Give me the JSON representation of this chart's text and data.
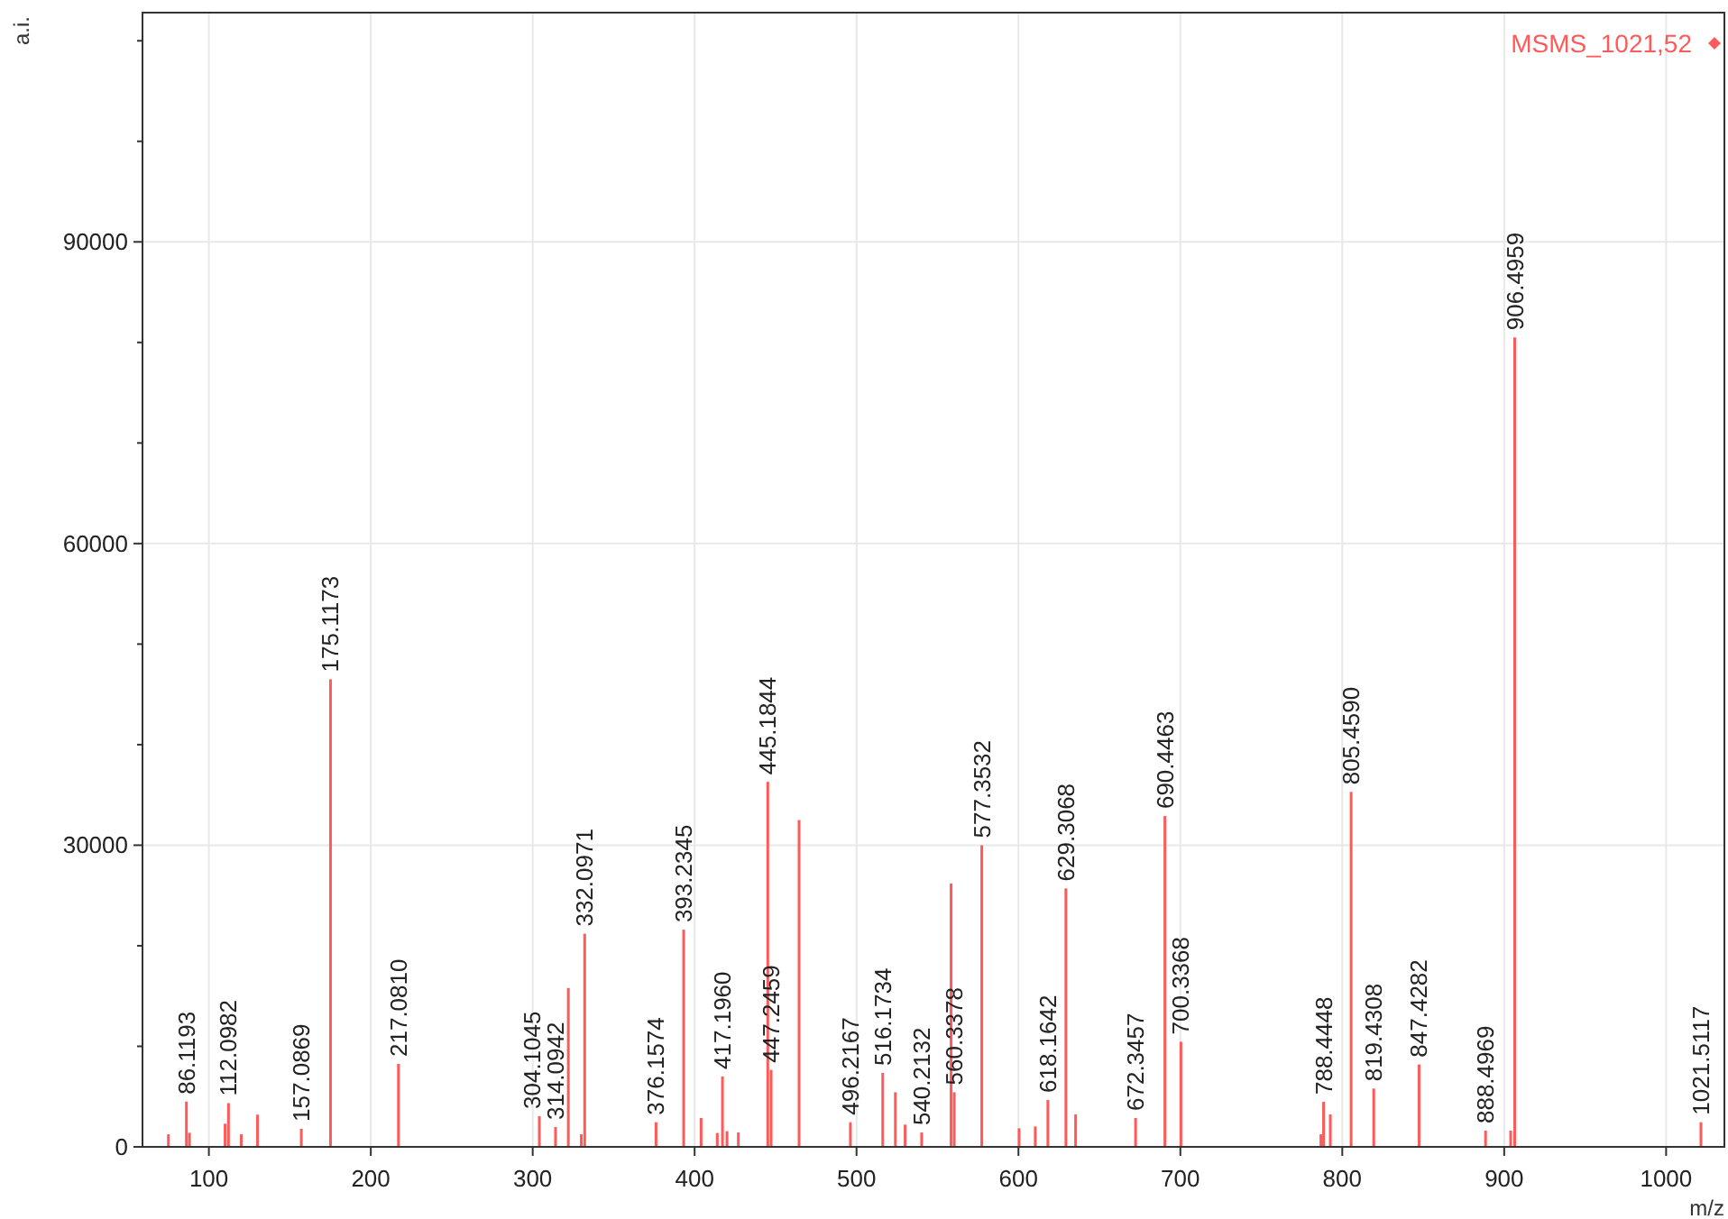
{
  "chart_data": {
    "type": "bar",
    "xlabel": "m/z",
    "ylabel": "a.i.",
    "xlim": [
      59,
      1036
    ],
    "xticks": [
      100,
      200,
      300,
      400,
      500,
      600,
      700,
      800,
      900,
      1000
    ],
    "ylim": [
      0,
      112800
    ],
    "yticks": [
      0,
      {
        "value": 10000,
        "label": null
      },
      {
        "value": 20000,
        "label": null
      },
      30000,
      {
        "value": 40000,
        "label": null
      },
      {
        "value": 50000,
        "label": null
      },
      60000,
      {
        "value": 70000,
        "label": null
      },
      {
        "value": 80000,
        "label": null
      },
      90000,
      {
        "value": 100000,
        "label": null
      },
      {
        "value": 110000,
        "label": null
      }
    ],
    "grid": true,
    "legend": "top right",
    "series": [
      {
        "name": "MSMS_1021,52",
        "color": "#ff5a5a",
        "x": [
          75,
          86.1193,
          88,
          110,
          112.0982,
          120,
          130,
          157.0869,
          175.1173,
          217.081,
          304.1045,
          314.0942,
          322,
          330,
          332.0971,
          376.1574,
          393.2345,
          404,
          414,
          417.196,
          420,
          427,
          445.1844,
          447.2459,
          464.5,
          496.2167,
          516.1734,
          524,
          530,
          540.2132,
          558.4,
          560.3378,
          577.3532,
          600.4,
          610.4,
          618.1642,
          629.3068,
          635.3,
          672.3457,
          690.4463,
          700.3368,
          786.8,
          788.4448,
          792.6,
          805.459,
          819.4308,
          847.4282,
          888.4969,
          904,
          906.4959,
          1021.5117
        ],
        "values": [
          1250,
          4500,
          1400,
          2300,
          4350,
          1250,
          3200,
          1800,
          46500,
          8250,
          3050,
          1970,
          15800,
          1250,
          21200,
          2450,
          21600,
          2870,
          1380,
          7000,
          1560,
          1430,
          36300,
          7650,
          32500,
          2450,
          7350,
          5430,
          2210,
          1430,
          26200,
          5430,
          30000,
          1850,
          2030,
          4660,
          25700,
          3230,
          2870,
          32900,
          10450,
          1250,
          4480,
          3230,
          35300,
          5800,
          8190,
          1610,
          1610,
          80500,
          2450
        ]
      }
    ],
    "annotations": [
      {
        "text": "86.1193",
        "x": 86.1193,
        "y": 4500
      },
      {
        "text": "112.0982",
        "x": 112.0982,
        "y": 4350
      },
      {
        "text": "157.0869",
        "x": 157.0869,
        "y": 1800
      },
      {
        "text": "175.1173",
        "x": 175.1173,
        "y": 46500
      },
      {
        "text": "217.0810",
        "x": 217.081,
        "y": 8250
      },
      {
        "text": "304.1045",
        "x": 304.1045,
        "y": 3050
      },
      {
        "text": "314.0942",
        "x": 314.0942,
        "y": 1970
      },
      {
        "text": "332.0971",
        "x": 332.0971,
        "y": 21200
      },
      {
        "text": "376.1574",
        "x": 376.1574,
        "y": 2450
      },
      {
        "text": "393.2345",
        "x": 393.2345,
        "y": 21600
      },
      {
        "text": "417.1960",
        "x": 417.196,
        "y": 7000
      },
      {
        "text": "445.1844",
        "x": 445.1844,
        "y": 36300
      },
      {
        "text": "447.2459",
        "x": 447.2459,
        "y": 7650
      },
      {
        "text": "496.2167",
        "x": 496.2167,
        "y": 2450
      },
      {
        "text": "516.1734",
        "x": 516.1734,
        "y": 7350
      },
      {
        "text": "540.2132",
        "x": 540.2132,
        "y": 1430
      },
      {
        "text": "560.3378",
        "x": 560.3378,
        "y": 5430
      },
      {
        "text": "577.3532",
        "x": 577.3532,
        "y": 30000
      },
      {
        "text": "618.1642",
        "x": 618.1642,
        "y": 4660
      },
      {
        "text": "629.3068",
        "x": 629.3068,
        "y": 25700
      },
      {
        "text": "672.3457",
        "x": 672.3457,
        "y": 2870
      },
      {
        "text": "690.4463",
        "x": 690.4463,
        "y": 32900
      },
      {
        "text": "700.3368",
        "x": 700.3368,
        "y": 10450
      },
      {
        "text": "788.4448",
        "x": 788.4448,
        "y": 4480
      },
      {
        "text": "805.4590",
        "x": 805.459,
        "y": 35300
      },
      {
        "text": "819.4308",
        "x": 819.4308,
        "y": 5800
      },
      {
        "text": "847.4282",
        "x": 847.4282,
        "y": 8190
      },
      {
        "text": "888.4969",
        "x": 888.4969,
        "y": 1610
      },
      {
        "text": "906.4959",
        "x": 906.4959,
        "y": 80500
      },
      {
        "text": "1021.5117",
        "x": 1021.5117,
        "y": 2450
      }
    ]
  }
}
